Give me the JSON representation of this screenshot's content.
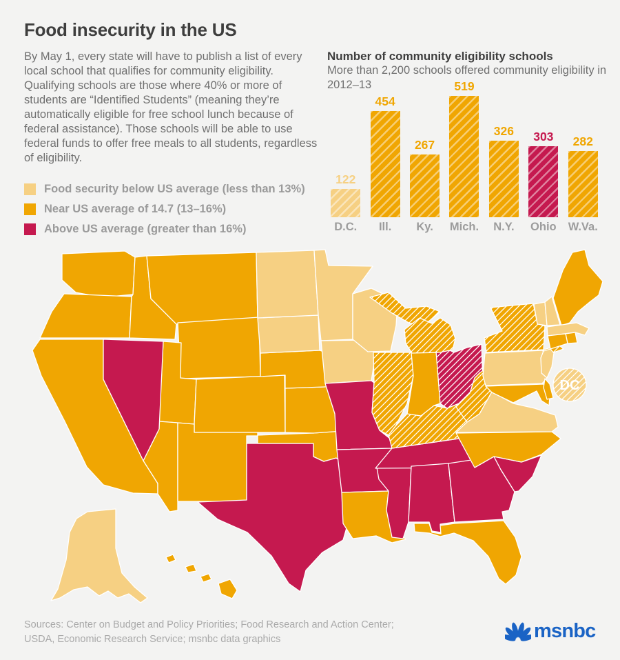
{
  "page": {
    "background": "#F3F3F2",
    "title": "Food insecurity in the US",
    "description": "By May 1, every state will have to publish a list of every local school that qualifies for community eligibility. Qualifying schools are those where 40% or more of students are “Identified Students” (meaning they’re automatically eligible for free school lunch because of federal assistance). Those schools will be able to use federal funds to offer free meals to all students, regardless of eligibility."
  },
  "colors": {
    "below": "#F6D083",
    "near": "#F0A602",
    "above": "#C5194F",
    "hatch_line": "rgba(255,255,255,0.45)"
  },
  "legend": {
    "items": [
      {
        "level": "below",
        "label": "Food security below US average (less than 13%)"
      },
      {
        "level": "near",
        "label": "Near US average of 14.7 (13–16%)"
      },
      {
        "level": "above",
        "label": "Above US average (greater than 16%)"
      }
    ]
  },
  "chart_data": {
    "type": "bar",
    "title": "Number of community eligibility schools",
    "subtitle": "More than 2,200 schools offered community eligibility in 2012–13",
    "categories": [
      "D.C.",
      "Ill.",
      "Ky.",
      "Mich.",
      "N.Y.",
      "Ohio",
      "W.Va."
    ],
    "values": [
      122,
      454,
      267,
      519,
      326,
      303,
      282
    ],
    "levels": [
      "below",
      "near",
      "near",
      "near",
      "near",
      "above",
      "near"
    ],
    "hatched": true,
    "ylim": [
      0,
      519
    ],
    "legend_position": "none",
    "grid": false
  },
  "map": {
    "dc_label": "DC",
    "hatched": [
      "DC",
      "IL",
      "KY",
      "MI",
      "NY",
      "OH",
      "WV"
    ],
    "levels": {
      "WA": "near",
      "OR": "near",
      "CA": "near",
      "NV": "above",
      "ID": "near",
      "MT": "near",
      "WY": "near",
      "UT": "near",
      "CO": "near",
      "AZ": "near",
      "NM": "near",
      "TX": "above",
      "OK": "near",
      "KS": "near",
      "NE": "near",
      "SD": "below",
      "ND": "below",
      "MN": "below",
      "IA": "below",
      "MO": "above",
      "AR": "above",
      "LA": "near",
      "WI": "below",
      "IL": "near",
      "MS": "above",
      "TN": "above",
      "KY": "near",
      "IN": "near",
      "OH": "above",
      "MI": "near",
      "AL": "above",
      "GA": "above",
      "FL": "near",
      "SC": "above",
      "NC": "near",
      "VA": "below",
      "WV": "near",
      "PA": "below",
      "NY": "near",
      "NJ": "below",
      "MD": "near",
      "DE": "near",
      "ME": "near",
      "VT": "below",
      "NH": "below",
      "MA": "below",
      "RI": "near",
      "CT": "near",
      "AK": "below",
      "HI": "near",
      "DC": "below"
    }
  },
  "sources": {
    "line1": "Sources: Center on Budget and Policy Priorities; Food Research and Action Center;",
    "line2": "USDA, Economic Research Service; msnbc data graphics"
  },
  "brand": {
    "wordmark": "msnbc"
  }
}
